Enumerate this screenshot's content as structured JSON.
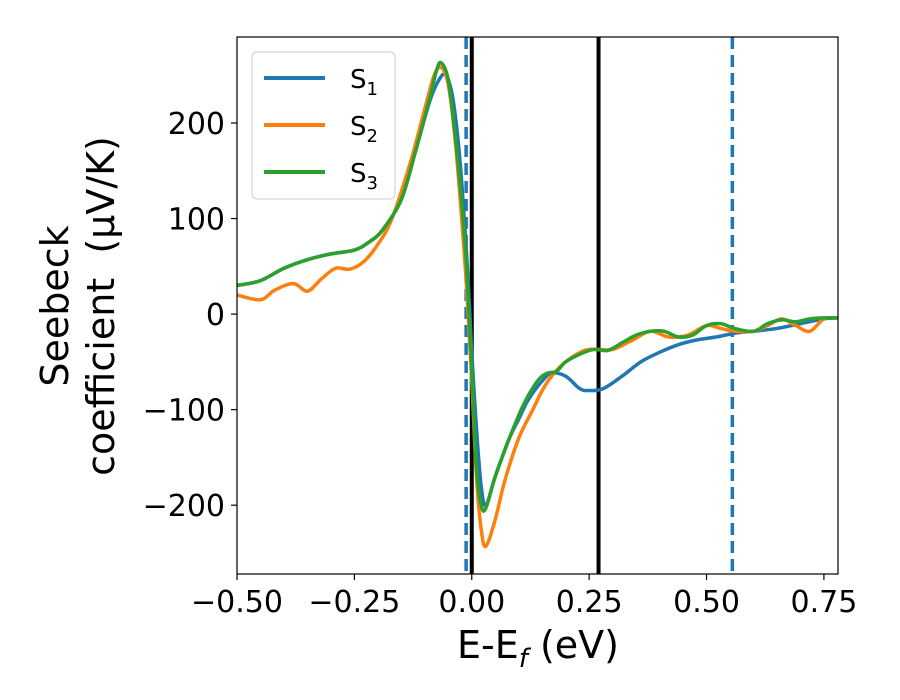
{
  "chart_data": {
    "type": "line",
    "xlabel": {
      "main": "E-E",
      "sub": "f",
      "unit": " (eV)"
    },
    "ylabel": {
      "line1": "Seebeck",
      "line2": "coefficient  (μV/K)"
    },
    "xlim": [
      -0.5,
      0.78
    ],
    "ylim": [
      -272,
      290
    ],
    "xticks": [
      -0.5,
      -0.25,
      0.0,
      0.25,
      0.5,
      0.75
    ],
    "xtick_labels": [
      "−0.50",
      "−0.25",
      "0.00",
      "0.25",
      "0.50",
      "0.75"
    ],
    "yticks": [
      -200,
      -100,
      0,
      100,
      200
    ],
    "ytick_labels": [
      "−200",
      "−100",
      "0",
      "100",
      "200"
    ],
    "grid": false,
    "legend_position": "top-left",
    "series": [
      {
        "name": "S",
        "sub": "1",
        "color": "#1f77b4",
        "x": [
          -0.5,
          -0.45,
          -0.4,
          -0.35,
          -0.3,
          -0.25,
          -0.22,
          -0.19,
          -0.15,
          -0.12,
          -0.09,
          -0.07,
          -0.055,
          -0.04,
          -0.025,
          -0.012,
          -0.005,
          0.0,
          0.01,
          0.02,
          0.03,
          0.05,
          0.08,
          0.1,
          0.12,
          0.15,
          0.17,
          0.2,
          0.23,
          0.25,
          0.28,
          0.32,
          0.36,
          0.4,
          0.44,
          0.48,
          0.52,
          0.56,
          0.6,
          0.65,
          0.7,
          0.75,
          0.78
        ],
        "y": [
          30,
          35,
          48,
          57,
          63,
          67,
          75,
          88,
          120,
          170,
          222,
          245,
          250,
          225,
          160,
          70,
          10,
          -40,
          -120,
          -180,
          -200,
          -170,
          -130,
          -110,
          -90,
          -70,
          -62,
          -65,
          -78,
          -80,
          -78,
          -65,
          -50,
          -40,
          -32,
          -27,
          -24,
          -20,
          -18,
          -15,
          -10,
          -5,
          -4
        ]
      },
      {
        "name": "S",
        "sub": "2",
        "color": "#ff7f0e",
        "x": [
          -0.5,
          -0.45,
          -0.42,
          -0.38,
          -0.35,
          -0.32,
          -0.29,
          -0.26,
          -0.23,
          -0.2,
          -0.17,
          -0.13,
          -0.1,
          -0.08,
          -0.065,
          -0.05,
          -0.035,
          -0.02,
          -0.01,
          0.0,
          0.01,
          0.02,
          0.03,
          0.05,
          0.07,
          0.1,
          0.13,
          0.15,
          0.17,
          0.2,
          0.24,
          0.27,
          0.3,
          0.34,
          0.38,
          0.42,
          0.46,
          0.5,
          0.53,
          0.56,
          0.6,
          0.63,
          0.66,
          0.69,
          0.72,
          0.75,
          0.78
        ],
        "y": [
          20,
          15,
          25,
          32,
          24,
          37,
          48,
          47,
          55,
          73,
          100,
          160,
          215,
          250,
          258,
          240,
          180,
          90,
          20,
          -70,
          -170,
          -225,
          -243,
          -215,
          -175,
          -130,
          -100,
          -80,
          -65,
          -50,
          -38,
          -37,
          -37,
          -28,
          -18,
          -24,
          -22,
          -12,
          -15,
          -18,
          -18,
          -12,
          -5,
          -12,
          -18,
          -5,
          -4
        ]
      },
      {
        "name": "S",
        "sub": "3",
        "color": "#2ca02c",
        "x": [
          -0.5,
          -0.45,
          -0.4,
          -0.35,
          -0.3,
          -0.25,
          -0.22,
          -0.19,
          -0.15,
          -0.12,
          -0.09,
          -0.075,
          -0.065,
          -0.05,
          -0.035,
          -0.02,
          -0.01,
          0.0,
          0.01,
          0.02,
          0.03,
          0.05,
          0.08,
          0.11,
          0.14,
          0.16,
          0.18,
          0.2,
          0.23,
          0.26,
          0.29,
          0.32,
          0.35,
          0.38,
          0.41,
          0.44,
          0.47,
          0.5,
          0.53,
          0.56,
          0.6,
          0.63,
          0.66,
          0.69,
          0.72,
          0.75,
          0.78
        ],
        "y": [
          30,
          35,
          48,
          57,
          63,
          67,
          75,
          88,
          120,
          170,
          225,
          255,
          263,
          245,
          185,
          110,
          40,
          -60,
          -160,
          -200,
          -203,
          -170,
          -130,
          -95,
          -70,
          -62,
          -60,
          -50,
          -42,
          -37,
          -38,
          -30,
          -22,
          -18,
          -18,
          -24,
          -22,
          -12,
          -10,
          -15,
          -18,
          -10,
          -6,
          -8,
          -5,
          -4,
          -4
        ]
      }
    ],
    "reference_lines": [
      {
        "x": -0.012,
        "style": "dashed",
        "color": "#1f77b4"
      },
      {
        "x": 0.0,
        "style": "solid",
        "color": "#000000"
      },
      {
        "x": 0.27,
        "style": "solid",
        "color": "#000000"
      },
      {
        "x": 0.555,
        "style": "dashed",
        "color": "#1f77b4"
      }
    ]
  }
}
